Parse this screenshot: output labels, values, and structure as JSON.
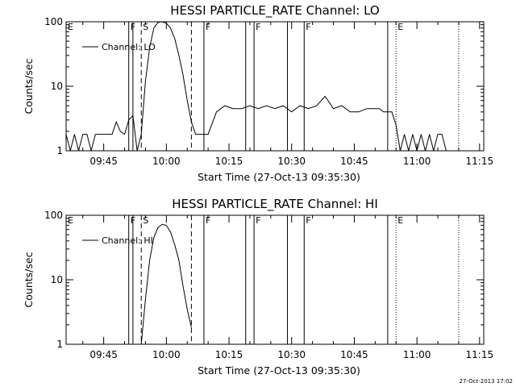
{
  "chart_data": [
    {
      "type": "line",
      "title": "HESSI PARTICLE_RATE Channel: LO",
      "xlabel": "Start Time (27-Oct-13 09:35:30)",
      "ylabel": "Counts/sec",
      "yscale": "log",
      "ylim": [
        1,
        100
      ],
      "xlim": [
        "09:36",
        "11:16"
      ],
      "xticks": [
        "09:45",
        "10:00",
        "10:15",
        "10:30",
        "10:45",
        "11:00",
        "11:15"
      ],
      "yticks": [
        "1",
        "10",
        "100"
      ],
      "grid": false,
      "legend": "upper-left",
      "series": [
        {
          "name": "Channel: LO",
          "x": [
            "09:36",
            "09:37",
            "09:38",
            "09:39",
            "09:40",
            "09:41",
            "09:42",
            "09:43",
            "09:44",
            "09:45",
            "09:46",
            "09:47",
            "09:48",
            "09:49",
            "09:50",
            "09:51",
            "09:52",
            "09:53",
            "09:54",
            "09:55",
            "09:56",
            "09:57",
            "09:58",
            "09:59",
            "10:00",
            "10:01",
            "10:02",
            "10:03",
            "10:04",
            "10:05",
            "10:06",
            "10:07",
            "10:08",
            "10:09",
            "10:10",
            "10:12",
            "10:14",
            "10:16",
            "10:18",
            "10:20",
            "10:22",
            "10:24",
            "10:26",
            "10:28",
            "10:30",
            "10:32",
            "10:34",
            "10:36",
            "10:38",
            "10:40",
            "10:42",
            "10:44",
            "10:46",
            "10:48",
            "10:50",
            "10:51",
            "10:52",
            "10:53",
            "10:54",
            "10:55",
            "10:56",
            "10:57",
            "10:58",
            "10:59",
            "11:00",
            "11:01",
            "11:02",
            "11:03",
            "11:04",
            "11:05",
            "11:06",
            "11:07"
          ],
          "y": [
            1.8,
            1,
            1.8,
            1,
            1.8,
            1.8,
            1,
            1.8,
            1.8,
            1.8,
            1.8,
            1.8,
            2.8,
            2,
            1.8,
            3,
            3.5,
            1,
            1.8,
            12,
            40,
            80,
            98,
            100,
            95,
            80,
            55,
            30,
            15,
            6,
            2.8,
            1.8,
            1.8,
            1.8,
            1.8,
            4,
            5,
            4.5,
            4.5,
            5,
            4.5,
            5,
            4.5,
            5,
            4,
            5,
            4.5,
            5,
            7,
            4.5,
            5,
            4,
            4,
            4.5,
            4.5,
            4.5,
            4,
            4,
            4,
            2.5,
            1,
            1.8,
            1,
            1.8,
            1,
            1.8,
            1,
            1.8,
            1,
            1.8,
            1.8,
            1
          ]
        }
      ],
      "markers": [
        {
          "label": "E",
          "time": "09:36",
          "style": "solid"
        },
        {
          "label": "F",
          "time": "09:51",
          "style": "solid"
        },
        {
          "label": "",
          "time": "09:52",
          "style": "solid"
        },
        {
          "label": "S",
          "time": "09:54",
          "style": "dashed"
        },
        {
          "label": "",
          "time": "10:06",
          "style": "dashed"
        },
        {
          "label": "F",
          "time": "10:09",
          "style": "solid"
        },
        {
          "label": "",
          "time": "10:19",
          "style": "solid"
        },
        {
          "label": "F",
          "time": "10:21",
          "style": "solid"
        },
        {
          "label": "",
          "time": "10:29",
          "style": "solid"
        },
        {
          "label": "F",
          "time": "10:33",
          "style": "solid"
        },
        {
          "label": "",
          "time": "10:53",
          "style": "solid"
        },
        {
          "label": "E",
          "time": "10:55",
          "style": "dotted"
        },
        {
          "label": "",
          "time": "11:10",
          "style": "dotted"
        }
      ]
    },
    {
      "type": "line",
      "title": "HESSI PARTICLE_RATE Channel: HI",
      "xlabel": "Start Time (27-Oct-13 09:35:30)",
      "ylabel": "Counts/sec",
      "yscale": "log",
      "ylim": [
        1,
        100
      ],
      "xlim": [
        "09:36",
        "11:16"
      ],
      "xticks": [
        "09:45",
        "10:00",
        "10:15",
        "10:30",
        "10:45",
        "11:00",
        "11:15"
      ],
      "yticks": [
        "1",
        "10",
        "100"
      ],
      "grid": false,
      "legend": "upper-left",
      "series": [
        {
          "name": "Channel: HI",
          "x": [
            "09:54",
            "09:55",
            "09:56",
            "09:57",
            "09:58",
            "09:59",
            "10:00",
            "10:01",
            "10:02",
            "10:03",
            "10:04",
            "10:05",
            "10:06"
          ],
          "y": [
            1,
            5,
            20,
            45,
            65,
            72,
            70,
            55,
            35,
            20,
            8,
            3.5,
            1.8
          ]
        }
      ],
      "markers": [
        {
          "label": "E",
          "time": "09:36",
          "style": "solid"
        },
        {
          "label": "F",
          "time": "09:51",
          "style": "solid"
        },
        {
          "label": "",
          "time": "09:52",
          "style": "solid"
        },
        {
          "label": "S",
          "time": "09:54",
          "style": "dashed"
        },
        {
          "label": "",
          "time": "10:06",
          "style": "dashed"
        },
        {
          "label": "F",
          "time": "10:09",
          "style": "solid"
        },
        {
          "label": "",
          "time": "10:19",
          "style": "solid"
        },
        {
          "label": "F",
          "time": "10:21",
          "style": "solid"
        },
        {
          "label": "",
          "time": "10:29",
          "style": "solid"
        },
        {
          "label": "F",
          "time": "10:33",
          "style": "solid"
        },
        {
          "label": "",
          "time": "10:53",
          "style": "solid"
        },
        {
          "label": "E",
          "time": "10:55",
          "style": "dotted"
        },
        {
          "label": "",
          "time": "11:10",
          "style": "dotted"
        }
      ]
    }
  ],
  "footer": {
    "timestamp": "27-Oct-2013 17:02"
  }
}
